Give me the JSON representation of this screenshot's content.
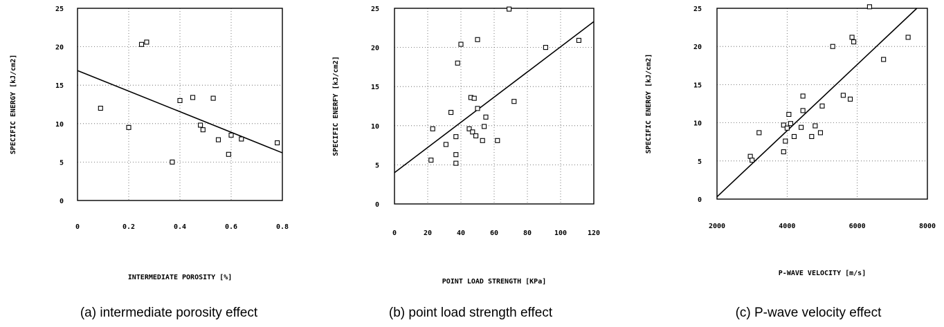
{
  "chart_data": [
    {
      "type": "scatter",
      "caption": "(a) intermediate porosity effect",
      "xlabel": "INTERMEDIATE POROSITY [%]",
      "ylabel": "SPECIFIC ENERGY [kJ/cm2]",
      "xlim": [
        0,
        0.8
      ],
      "ylim": [
        0,
        25
      ],
      "xticks": [
        "0",
        "0.2",
        "0.4",
        "0.6",
        "0.8"
      ],
      "yticks": [
        "0",
        "5",
        "10",
        "15",
        "20",
        "25"
      ],
      "grid": true,
      "points": [
        [
          0.09,
          12
        ],
        [
          0.2,
          9.5
        ],
        [
          0.25,
          20.3
        ],
        [
          0.27,
          20.6
        ],
        [
          0.37,
          5
        ],
        [
          0.4,
          13
        ],
        [
          0.45,
          13.4
        ],
        [
          0.48,
          9.8
        ],
        [
          0.49,
          9.2
        ],
        [
          0.53,
          13.3
        ],
        [
          0.55,
          7.9
        ],
        [
          0.59,
          6
        ],
        [
          0.6,
          8.5
        ],
        [
          0.64,
          8
        ],
        [
          0.78,
          7.5
        ]
      ],
      "fit_line": [
        [
          0,
          16.9
        ],
        [
          0.8,
          6.2
        ]
      ]
    },
    {
      "type": "scatter",
      "caption": "(b) point load strength effect",
      "xlabel": "POINT LOAD STRENGTH [KPa]",
      "ylabel": "SPECIFIC ENERFY [kJ/cm2]",
      "xlim": [
        0,
        120
      ],
      "ylim": [
        0,
        25
      ],
      "xticks": [
        "0",
        "20",
        "40",
        "60",
        "80",
        "100",
        "120"
      ],
      "yticks": [
        "0",
        "5",
        "10",
        "15",
        "20",
        "25"
      ],
      "grid": true,
      "points": [
        [
          22,
          5.6
        ],
        [
          23,
          9.6
        ],
        [
          31,
          7.6
        ],
        [
          34,
          11.7
        ],
        [
          37,
          8.6
        ],
        [
          37,
          6.3
        ],
        [
          37,
          5.2
        ],
        [
          38,
          18
        ],
        [
          40,
          20.4
        ],
        [
          45,
          9.6
        ],
        [
          46,
          13.6
        ],
        [
          47,
          9.2
        ],
        [
          48,
          13.5
        ],
        [
          49,
          8.7
        ],
        [
          50,
          12.2
        ],
        [
          50,
          21
        ],
        [
          53,
          8.1
        ],
        [
          54,
          9.9
        ],
        [
          55,
          11.1
        ],
        [
          62,
          8.1
        ],
        [
          69,
          24.9
        ],
        [
          72,
          13.1
        ],
        [
          91,
          20
        ],
        [
          111,
          20.9
        ]
      ],
      "fit_line": [
        [
          0,
          4
        ],
        [
          120,
          23.3
        ]
      ]
    },
    {
      "type": "scatter",
      "caption": "(c) P-wave velocity effect",
      "xlabel": "P-WAVE VELOCITY [m/s]",
      "ylabel": "SPECIFIC ENERGY [kJ/cm2]",
      "xlim": [
        2000,
        8000
      ],
      "ylim": [
        0,
        25
      ],
      "xticks": [
        "2000",
        "4000",
        "6000",
        "8000"
      ],
      "yticks": [
        "0",
        "5",
        "10",
        "15",
        "20",
        "25"
      ],
      "grid": true,
      "points": [
        [
          2950,
          5.6
        ],
        [
          3000,
          5.1
        ],
        [
          3200,
          8.7
        ],
        [
          3900,
          6.2
        ],
        [
          3900,
          9.7
        ],
        [
          3950,
          7.6
        ],
        [
          4000,
          9.3
        ],
        [
          4050,
          11.1
        ],
        [
          4100,
          9.9
        ],
        [
          4200,
          8.2
        ],
        [
          4400,
          9.4
        ],
        [
          4450,
          11.6
        ],
        [
          4450,
          13.5
        ],
        [
          4700,
          8.2
        ],
        [
          4800,
          9.6
        ],
        [
          4950,
          8.7
        ],
        [
          5000,
          12.2
        ],
        [
          5300,
          20
        ],
        [
          5600,
          13.6
        ],
        [
          5800,
          13.1
        ],
        [
          5850,
          21.2
        ],
        [
          5900,
          20.6
        ],
        [
          6350,
          25.2
        ],
        [
          6750,
          18.3
        ],
        [
          7450,
          21.2
        ]
      ],
      "fit_line": [
        [
          2000,
          0.3
        ],
        [
          7700,
          25
        ]
      ]
    }
  ]
}
